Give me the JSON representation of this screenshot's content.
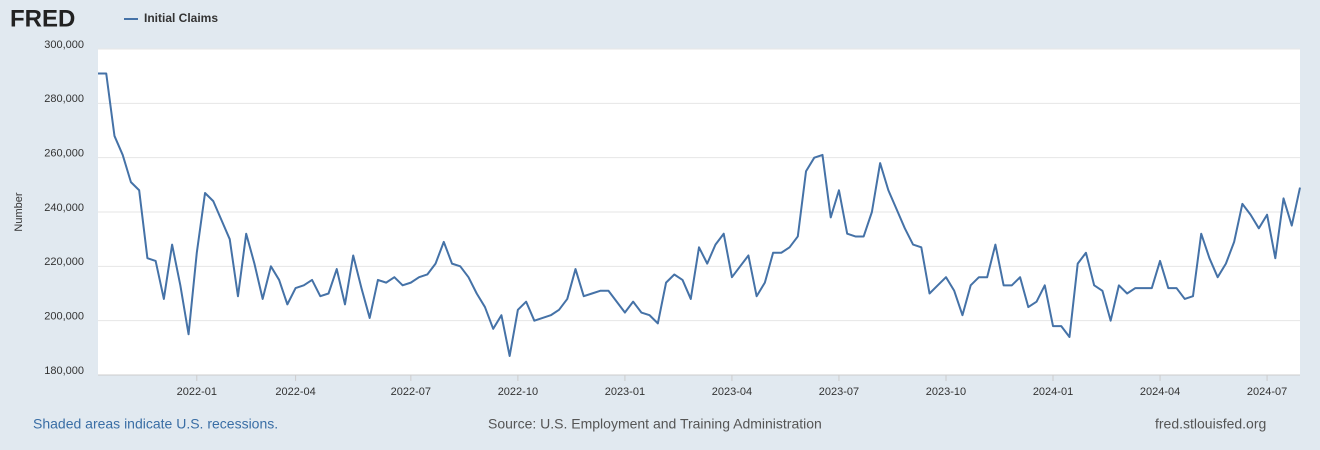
{
  "brand": "FRED",
  "footer": {
    "note": "Shaded areas indicate U.S. recessions.",
    "source": "Source: U.S. Employment and Training Administration",
    "site": "fred.stlouisfed.org"
  },
  "chart_data": {
    "type": "line",
    "ylabel": "Number",
    "categories": [
      null,
      null,
      null,
      null,
      null,
      null,
      null,
      null,
      null,
      null,
      null,
      null,
      "2022-01",
      null,
      null,
      null,
      null,
      null,
      null,
      null,
      null,
      null,
      null,
      null,
      "2022-04",
      null,
      null,
      null,
      null,
      null,
      null,
      null,
      null,
      null,
      null,
      null,
      null,
      null,
      "2022-07",
      null,
      null,
      null,
      null,
      null,
      null,
      null,
      null,
      null,
      null,
      null,
      null,
      "2022-10",
      null,
      null,
      null,
      null,
      null,
      null,
      null,
      null,
      null,
      null,
      null,
      null,
      "2023-01",
      null,
      null,
      null,
      null,
      null,
      null,
      null,
      null,
      null,
      null,
      null,
      null,
      "2023-04",
      null,
      null,
      null,
      null,
      null,
      null,
      null,
      null,
      null,
      null,
      null,
      null,
      "2023-07",
      null,
      null,
      null,
      null,
      null,
      null,
      null,
      null,
      null,
      null,
      null,
      null,
      "2023-10",
      null,
      null,
      null,
      null,
      null,
      null,
      null,
      null,
      null,
      null,
      null,
      null,
      "2024-01",
      null,
      null,
      null,
      null,
      null,
      null,
      null,
      null,
      null,
      null,
      null,
      null,
      "2024-04",
      null,
      null,
      null,
      null,
      null,
      null,
      null,
      null,
      null,
      null,
      null,
      null,
      "2024-07",
      null,
      null,
      null,
      null
    ],
    "series": [
      {
        "name": "Initial Claims",
        "color": "#4572a7",
        "values": [
          291000,
          291000,
          268000,
          261000,
          251000,
          248000,
          223000,
          222000,
          208000,
          228000,
          213000,
          195000,
          225000,
          247000,
          244000,
          237000,
          230000,
          209000,
          232000,
          221000,
          208000,
          220000,
          215000,
          206000,
          212000,
          213000,
          215000,
          209000,
          210000,
          219000,
          206000,
          224000,
          212000,
          201000,
          215000,
          214000,
          216000,
          213000,
          214000,
          216000,
          217000,
          221000,
          229000,
          221000,
          220000,
          216000,
          210000,
          205000,
          197000,
          202000,
          187000,
          204000,
          207000,
          200000,
          201000,
          202000,
          204000,
          208000,
          219000,
          209000,
          210000,
          211000,
          211000,
          207000,
          203000,
          207000,
          203000,
          202000,
          199000,
          214000,
          217000,
          215000,
          208000,
          227000,
          221000,
          228000,
          232000,
          216000,
          220000,
          224000,
          209000,
          214000,
          225000,
          225000,
          227000,
          231000,
          255000,
          260000,
          261000,
          238000,
          248000,
          232000,
          231000,
          231000,
          240000,
          258000,
          248000,
          241000,
          234000,
          228000,
          227000,
          210000,
          213000,
          216000,
          211000,
          202000,
          213000,
          216000,
          216000,
          228000,
          213000,
          213000,
          216000,
          205000,
          207000,
          213000,
          198000,
          198000,
          194000,
          221000,
          225000,
          213000,
          211000,
          200000,
          213000,
          210000,
          212000,
          212000,
          212000,
          222000,
          212000,
          212000,
          208000,
          209000,
          232000,
          223000,
          216000,
          221000,
          229000,
          243000,
          239000,
          234000,
          239000,
          223000,
          245000,
          235000,
          249000
        ]
      }
    ],
    "ylim": [
      180000,
      300000
    ],
    "yticks": [
      {
        "value": 180000,
        "label": "180,000"
      },
      {
        "value": 200000,
        "label": "200,000"
      },
      {
        "value": 220000,
        "label": "220,000"
      },
      {
        "value": 240000,
        "label": "240,000"
      },
      {
        "value": 260000,
        "label": "260,000"
      },
      {
        "value": 280000,
        "label": "280,000"
      },
      {
        "value": 300000,
        "label": "300,000"
      }
    ],
    "grid": true
  }
}
